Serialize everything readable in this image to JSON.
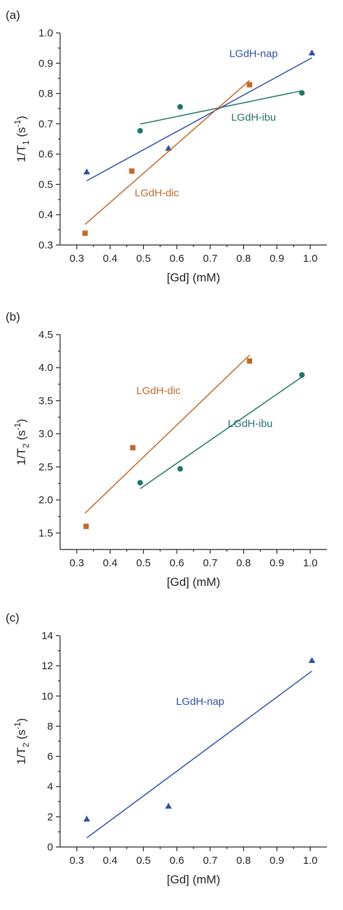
{
  "colors": {
    "nap": "#2f4fa8",
    "ibu": "#1f7666",
    "dic": "#c0692a",
    "axis": "#222222"
  },
  "chart_data": [
    {
      "panel_label": "(a)",
      "type": "scatter",
      "xlabel": "[Gd] (mM)",
      "ylabel": {
        "prefix": "1/T",
        "sub": "1",
        "unit_open": " (s",
        "sup": "-1",
        "unit_close": ")"
      },
      "xlim": [
        0.25,
        1.05
      ],
      "ylim": [
        0.3,
        1.0
      ],
      "xticks": [
        "0.3",
        "0.4",
        "0.5",
        "0.6",
        "0.7",
        "0.8",
        "0.9",
        "1.0"
      ],
      "yticks": [
        "0.3",
        "0.4",
        "0.5",
        "0.6",
        "0.7",
        "0.8",
        "0.9",
        "1.0"
      ],
      "series": [
        {
          "name": "LGdH-nap",
          "marker": "triangle",
          "color": "nap",
          "x": [
            0.33,
            0.575,
            1.005
          ],
          "y": [
            0.541,
            0.619,
            0.934
          ],
          "fit": {
            "x": [
              0.33,
              1.005
            ],
            "y": [
              0.512,
              0.918
            ]
          },
          "label_at": [
            0.83,
            0.92
          ]
        },
        {
          "name": "LGdH-ibu",
          "marker": "circle",
          "color": "ibu",
          "x": [
            0.49,
            0.61,
            0.975
          ],
          "y": [
            0.677,
            0.756,
            0.802
          ],
          "fit": {
            "x": [
              0.49,
              0.975
            ],
            "y": [
              0.699,
              0.809
            ]
          },
          "label_at": [
            0.83,
            0.71
          ]
        },
        {
          "name": "LGdH-dic",
          "marker": "square",
          "color": "dic",
          "x": [
            0.325,
            0.465,
            0.818
          ],
          "y": [
            0.339,
            0.544,
            0.829
          ],
          "fit": {
            "x": [
              0.325,
              0.818
            ],
            "y": [
              0.368,
              0.843
            ]
          },
          "label_at": [
            0.54,
            0.46
          ]
        }
      ]
    },
    {
      "panel_label": "(b)",
      "type": "scatter",
      "xlabel": "[Gd] (mM)",
      "ylabel": {
        "prefix": "1/T",
        "sub": "2",
        "unit_open": " (s",
        "sup": "-1",
        "unit_close": ")"
      },
      "xlim": [
        0.25,
        1.05
      ],
      "ylim": [
        1.25,
        4.5
      ],
      "xticks": [
        "0.3",
        "0.4",
        "0.5",
        "0.6",
        "0.7",
        "0.8",
        "0.9",
        "1.0"
      ],
      "yticks": [
        "1.5",
        "2.0",
        "2.5",
        "3.0",
        "3.5",
        "4.0",
        "4.5"
      ],
      "series": [
        {
          "name": "LGdH-dic",
          "marker": "square",
          "color": "dic",
          "x": [
            0.328,
            0.468,
            0.818
          ],
          "y": [
            1.6,
            2.79,
            4.1
          ],
          "fit": {
            "x": [
              0.325,
              0.818
            ],
            "y": [
              1.8,
              4.19
            ]
          },
          "label_at": [
            0.545,
            3.6
          ]
        },
        {
          "name": "LGdH-ibu",
          "marker": "circle",
          "color": "ibu",
          "x": [
            0.49,
            0.61,
            0.975
          ],
          "y": [
            2.26,
            2.47,
            3.89
          ],
          "fit": {
            "x": [
              0.49,
              0.975
            ],
            "y": [
              2.17,
              3.86
            ]
          },
          "label_at": [
            0.82,
            3.1
          ]
        }
      ]
    },
    {
      "panel_label": "(c)",
      "type": "scatter",
      "xlabel": "[Gd] (mM)",
      "ylabel": {
        "prefix": "1/T",
        "sub": "2",
        "unit_open": " (s",
        "sup": "-1",
        "unit_close": ")"
      },
      "xlim": [
        0.25,
        1.05
      ],
      "ylim": [
        0,
        14
      ],
      "xticks": [
        "0.3",
        "0.4",
        "0.5",
        "0.6",
        "0.7",
        "0.8",
        "0.9",
        "1.0"
      ],
      "yticks": [
        "0",
        "2",
        "4",
        "6",
        "8",
        "10",
        "12",
        "14"
      ],
      "series": [
        {
          "name": "LGdH-nap",
          "marker": "triangle",
          "color": "nap",
          "x": [
            0.33,
            0.575,
            1.005
          ],
          "y": [
            1.85,
            2.7,
            12.35
          ],
          "fit": {
            "x": [
              0.33,
              1.005
            ],
            "y": [
              0.6,
              11.65
            ]
          },
          "label_at": [
            0.67,
            9.4
          ]
        }
      ]
    }
  ]
}
